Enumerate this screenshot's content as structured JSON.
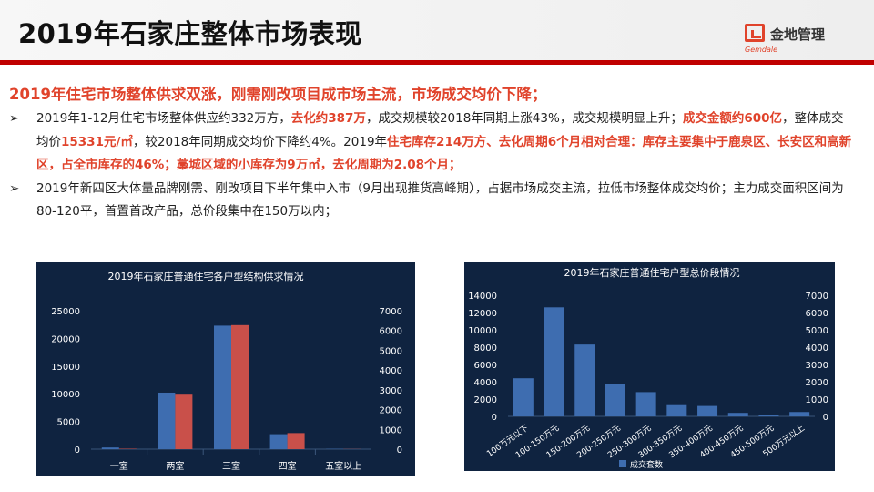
{
  "header": {
    "title": "2019年石家庄整体市场表现"
  },
  "logo": {
    "name": "金地管理",
    "sub": "Gemdale"
  },
  "summary": "2019年住宅市场整体供求双涨，刚需刚改项目成市场主流，市场成交均价下降；",
  "bullets": [
    {
      "mark": "➢",
      "segments": [
        {
          "text": "2019年1-12月住宅市场整体供应约332万方，",
          "hl": false
        },
        {
          "text": "去化约387万",
          "hl": true
        },
        {
          "text": "，成交规模较2018年同期上涨43%，成交规模明显上升；",
          "hl": false
        },
        {
          "text": "成交金额约600亿",
          "hl": true
        },
        {
          "text": "，整体成交均价",
          "hl": false
        },
        {
          "text": "15331元/㎡",
          "hl": true
        },
        {
          "text": "，较2018年同期成交均价下降约4%。2019年",
          "hl": false
        },
        {
          "text": "住宅库存214万方、去化周期6个月相对合理：",
          "hl": true
        },
        {
          "text": "库存主要集中于鹿泉区、长安区和高新区，占全市库存的46%；藁城区域的小库存为9万㎡，去化周期为2.08个月；",
          "hl": false
        }
      ]
    },
    {
      "mark": "➢",
      "segments": [
        {
          "text": "2019年新四区大体量品牌刚需、刚改项目下半年集中入市（9月出现推货高峰期），占据市场成交主流，拉低市场整体成交均价；主力成交面积区间为80-120平，首置首改产品，总价段集中在150万以内；",
          "hl": false
        }
      ]
    }
  ],
  "chart_data": [
    {
      "type": "bar",
      "title": "2019年石家庄普通住宅各户型结构供求情况",
      "categories": [
        "一室",
        "两室",
        "三室",
        "四室",
        "五室以上"
      ],
      "series": [
        {
          "values": [
            300,
            10200,
            22300,
            2700,
            50
          ],
          "color": "#3e6db0"
        },
        {
          "values": [
            80,
            10000,
            22400,
            2900,
            30
          ],
          "color": "#c9504a"
        }
      ],
      "ylim": [
        0,
        25000
      ],
      "yticks": [
        0,
        5000,
        10000,
        15000,
        20000,
        25000
      ],
      "y2lim": [
        0,
        7000
      ],
      "y2ticks": [
        0,
        1000,
        2000,
        3000,
        4000,
        5000,
        6000,
        7000
      ]
    },
    {
      "type": "bar",
      "title": "2019年石家庄普通住宅户型总价段情况",
      "categories": [
        "100万元以下",
        "100-150万元",
        "150-200万元",
        "200-250万元",
        "250-300万元",
        "300-350万元",
        "350-400万元",
        "400-450万元",
        "450-500万元",
        "500万元以上"
      ],
      "series": [
        {
          "name": "成交套数",
          "values": [
            4400,
            12600,
            8300,
            3700,
            2800,
            1400,
            1200,
            400,
            200,
            500
          ],
          "color": "#3e6db0"
        }
      ],
      "ylim": [
        0,
        14000
      ],
      "yticks": [
        0,
        2000,
        4000,
        6000,
        8000,
        10000,
        12000,
        14000
      ],
      "y2lim": [
        0,
        7000
      ],
      "y2ticks": [
        0,
        1000,
        2000,
        3000,
        4000,
        5000,
        6000,
        7000
      ],
      "legend": "bottom-center"
    }
  ]
}
